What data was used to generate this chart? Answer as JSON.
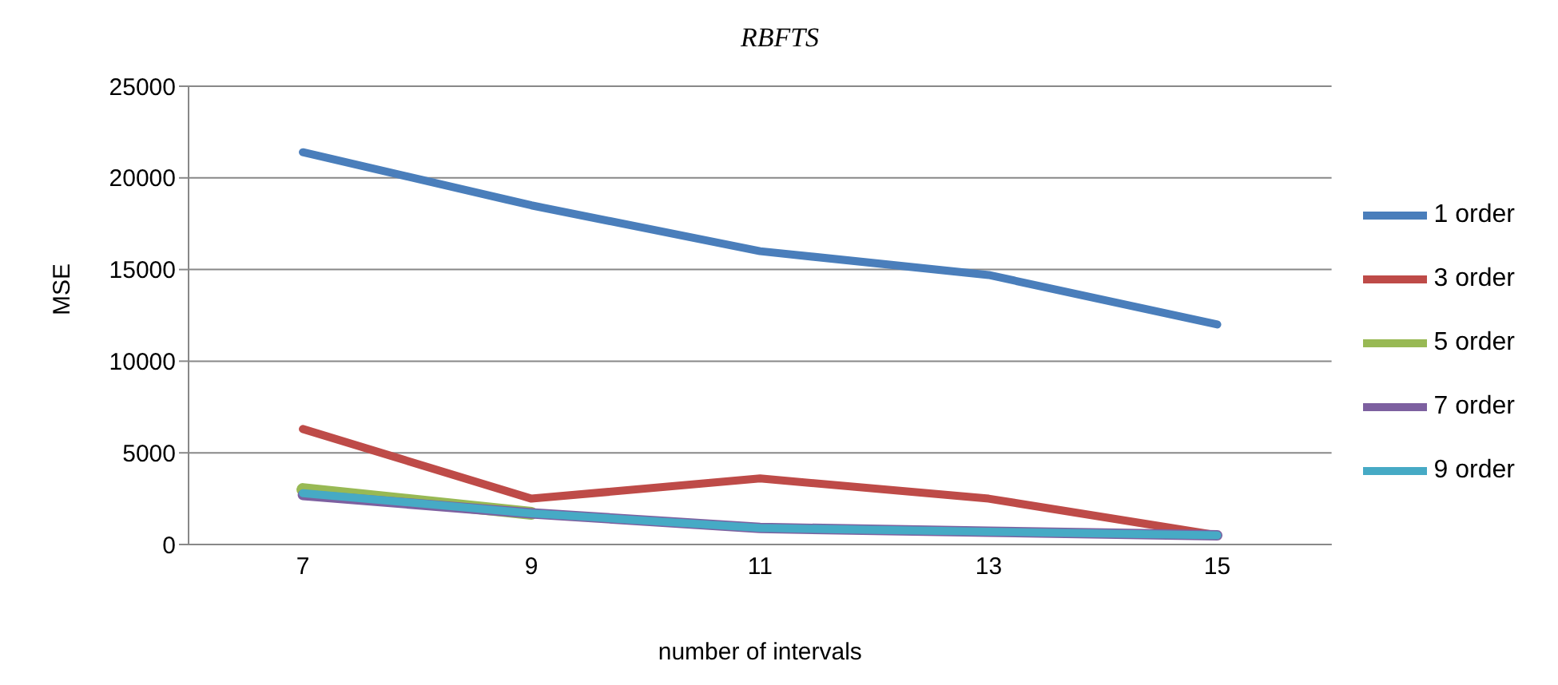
{
  "chart_data": {
    "type": "line",
    "title": "RBFTS",
    "xlabel": "number of intervals",
    "ylabel": "MSE",
    "categories": [
      "7",
      "9",
      "11",
      "13",
      "15"
    ],
    "series": [
      {
        "name": "1 order",
        "color": "#4a7ebb",
        "values": [
          21400,
          18500,
          16000,
          14700,
          12000
        ]
      },
      {
        "name": "3 order",
        "color": "#be4b48",
        "values": [
          6300,
          2500,
          3600,
          2500,
          500
        ]
      },
      {
        "name": "5 order",
        "color": "#98b954",
        "values": [
          3000,
          1700,
          null,
          null,
          null
        ]
      },
      {
        "name": "7 order",
        "color": "#7d60a0",
        "values": [
          2700,
          1700,
          900,
          700,
          500
        ]
      },
      {
        "name": "9 order",
        "color": "#46aac5",
        "values": [
          2800,
          1700,
          900,
          700,
          500
        ]
      }
    ],
    "ylim": [
      0,
      25000
    ],
    "yticks": [
      0,
      5000,
      10000,
      15000,
      20000,
      25000
    ],
    "grid": "y",
    "legend": "right",
    "marker": "none",
    "line_style": "solid"
  }
}
